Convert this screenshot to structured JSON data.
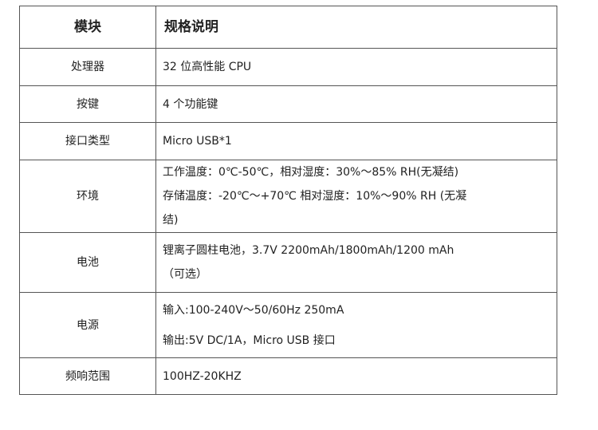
{
  "table": {
    "header": {
      "module": "模块",
      "spec": "规格说明"
    },
    "rows": [
      {
        "module": "处理器",
        "lines": [
          "32 位高性能 CPU"
        ]
      },
      {
        "module": "按键",
        "lines": [
          "4 个功能键"
        ]
      },
      {
        "module": "接口类型",
        "lines": [
          "Micro USB*1"
        ]
      },
      {
        "module": "环境",
        "lines": [
          "工作温度：0℃-50℃，相对湿度：30%～85% RH(无凝结)",
          "存储温度：-20℃～+70℃ 相对湿度：10%～90% RH (无凝",
          "结)"
        ]
      },
      {
        "module": "电池",
        "lines": [
          "锂离子圆柱电池，3.7V 2200mAh/1800mAh/1200 mAh",
          "（可选）"
        ]
      },
      {
        "module": "电源",
        "lines": [
          "输入:100-240V～50/60Hz 250mA",
          "输出:5V DC/1A，Micro USB 接口"
        ]
      },
      {
        "module": "频响范围",
        "lines": [
          "100HZ-20KHZ"
        ]
      }
    ]
  }
}
